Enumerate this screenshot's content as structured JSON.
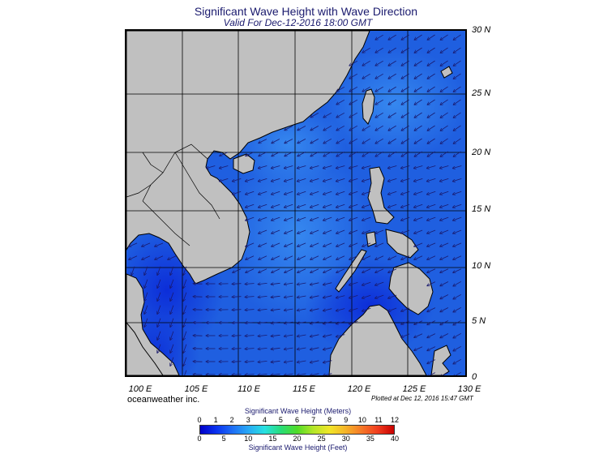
{
  "header": {
    "title": "Significant Wave Height with Wave Direction",
    "subtitle": "Valid For Dec-12-2016 18:00 GMT"
  },
  "map": {
    "lat_labels": [
      "30 N",
      "25 N",
      "20 N",
      "15 N",
      "10 N",
      "5 N",
      "0"
    ],
    "lon_labels": [
      "100 E",
      "105 E",
      "110 E",
      "115 E",
      "120 E",
      "125 E",
      "130 E"
    ],
    "lon_range": [
      100,
      130
    ],
    "lat_range": [
      0,
      30
    ],
    "colors": {
      "land": "#c0c0c0",
      "sea_deep": "#0a28d8",
      "sea_mid": "#1f5fe0",
      "sea_light": "#2e86f0",
      "grid": "#000000",
      "arrow": "#1a1a6e"
    }
  },
  "footer": {
    "credit": "oceanweather inc.",
    "plotted": "Plotted at Dec 12, 2016 15:47 GMT"
  },
  "legend": {
    "title_meters": "Significant Wave Height (Meters)",
    "title_feet": "Significant Wave Height (Feet)",
    "meters_ticks": [
      "0",
      "1",
      "2",
      "3",
      "4",
      "5",
      "6",
      "7",
      "8",
      "9",
      "10",
      "11",
      "12"
    ],
    "feet_ticks": [
      "0",
      "5",
      "10",
      "15",
      "20",
      "25",
      "30",
      "35",
      "40"
    ],
    "gradient": [
      "#0000c8",
      "#0a32f0",
      "#1e6ef5",
      "#28aaf5",
      "#28e1e1",
      "#28dc78",
      "#50dc28",
      "#b4e628",
      "#f0e628",
      "#f5b428",
      "#f57828",
      "#f03c1e",
      "#c80000"
    ]
  }
}
